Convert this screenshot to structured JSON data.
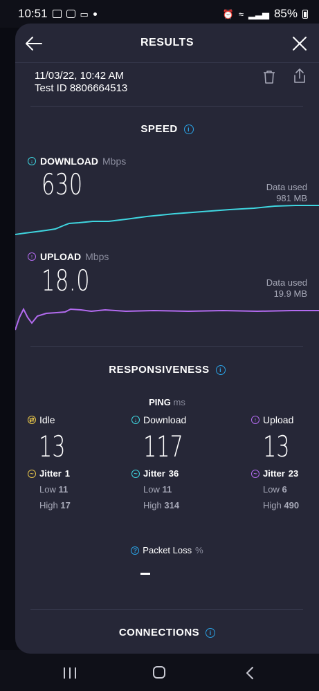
{
  "status_bar": {
    "time": "10:51",
    "battery": "85%"
  },
  "header": {
    "title": "RESULTS"
  },
  "test": {
    "datetime": "11/03/22, 10:42 AM",
    "test_id": "Test ID 8806664513"
  },
  "speed": {
    "title": "SPEED",
    "download": {
      "label": "DOWNLOAD",
      "unit": "Mbps",
      "value": "630",
      "data_used_label": "Data used",
      "data_used": "981 MB"
    },
    "upload": {
      "label": "UPLOAD",
      "unit": "Mbps",
      "value": "18.0",
      "data_used_label": "Data used",
      "data_used": "19.9 MB"
    }
  },
  "responsiveness": {
    "title": "RESPONSIVENESS",
    "ping_label": "PING",
    "ping_unit": "ms",
    "columns": [
      {
        "label": "Idle",
        "value": "13",
        "jitter_label": "Jitter",
        "jitter": "1",
        "low_label": "Low",
        "low": "11",
        "high_label": "High",
        "high": "17"
      },
      {
        "label": "Download",
        "value": "117",
        "jitter_label": "Jitter",
        "jitter": "36",
        "low_label": "Low",
        "low": "11",
        "high_label": "High",
        "high": "314"
      },
      {
        "label": "Upload",
        "value": "13",
        "jitter_label": "Jitter",
        "jitter": "23",
        "low_label": "Low",
        "low": "6",
        "high_label": "High",
        "high": "490"
      }
    ],
    "packet_loss_label": "Packet Loss",
    "packet_loss_unit": "%"
  },
  "connections": {
    "title": "CONNECTIONS"
  },
  "colors": {
    "background": "#262737",
    "download_accent": "#3fd6e0",
    "upload_accent": "#b36bf0",
    "idle_accent": "#e8c64a",
    "info_accent": "#2aa3e6"
  }
}
